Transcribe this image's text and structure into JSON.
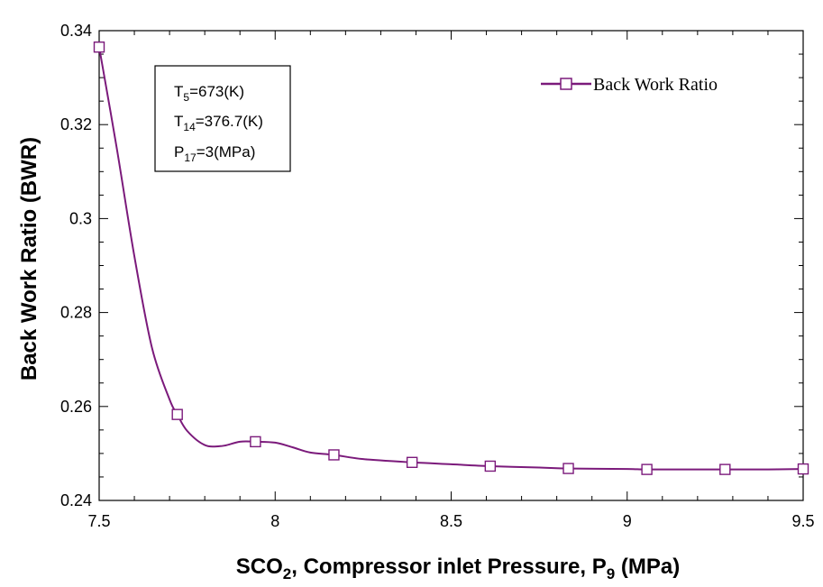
{
  "chart_data": {
    "type": "line",
    "xlabel": {
      "pre": "SCO",
      "sub1": "2",
      "mid": ", Compressor inlet Pressure, P",
      "sub2": "9",
      "post": " (MPa)"
    },
    "ylabel": "Back Work Ratio (BWR)",
    "xlim": [
      7.5,
      9.5
    ],
    "ylim": [
      0.24,
      0.34
    ],
    "x_ticks": [
      7.5,
      8,
      8.5,
      9,
      9.5
    ],
    "x_tick_labels": [
      "7.5",
      "8",
      "8.5",
      "9",
      "9.5"
    ],
    "y_ticks": [
      0.24,
      0.26,
      0.28,
      0.3,
      0.32,
      0.34
    ],
    "y_tick_labels": [
      "0.24",
      "0.26",
      "0.28",
      "0.3",
      "0.32",
      "0.34"
    ],
    "legend_position": "top-right",
    "series": [
      {
        "name": "Back Work Ratio",
        "color": "#7b1a7b",
        "marker": "open-square",
        "x": [
          7.5,
          7.722,
          7.944,
          8.167,
          8.389,
          8.611,
          8.833,
          9.056,
          9.278,
          9.5
        ],
        "y": [
          0.3365,
          0.2583,
          0.2525,
          0.2497,
          0.2481,
          0.2473,
          0.2468,
          0.2466,
          0.2466,
          0.2467
        ],
        "curve": {
          "x": [
            7.5,
            7.55,
            7.6,
            7.65,
            7.7,
            7.722,
            7.75,
            7.8,
            7.85,
            7.9,
            7.944,
            8.0,
            8.05,
            8.1,
            8.167,
            8.25,
            8.389,
            8.5,
            8.611,
            8.75,
            8.833,
            9.0,
            9.056,
            9.2,
            9.278,
            9.4,
            9.5
          ],
          "y": [
            0.3365,
            0.315,
            0.292,
            0.2725,
            0.2615,
            0.2583,
            0.2548,
            0.2518,
            0.2516,
            0.2525,
            0.2525,
            0.2523,
            0.2513,
            0.2502,
            0.2497,
            0.2488,
            0.2481,
            0.2477,
            0.2473,
            0.247,
            0.2468,
            0.2467,
            0.2466,
            0.2466,
            0.2466,
            0.2466,
            0.2467
          ]
        }
      }
    ],
    "annotation": {
      "lines": [
        {
          "pre": "T",
          "sub": "5",
          "post": "=673(K)"
        },
        {
          "pre": "T",
          "sub": "14",
          "post": "=376.7(K)"
        },
        {
          "pre": "P",
          "sub": "17",
          "post": "=3(MPa)"
        }
      ]
    }
  }
}
